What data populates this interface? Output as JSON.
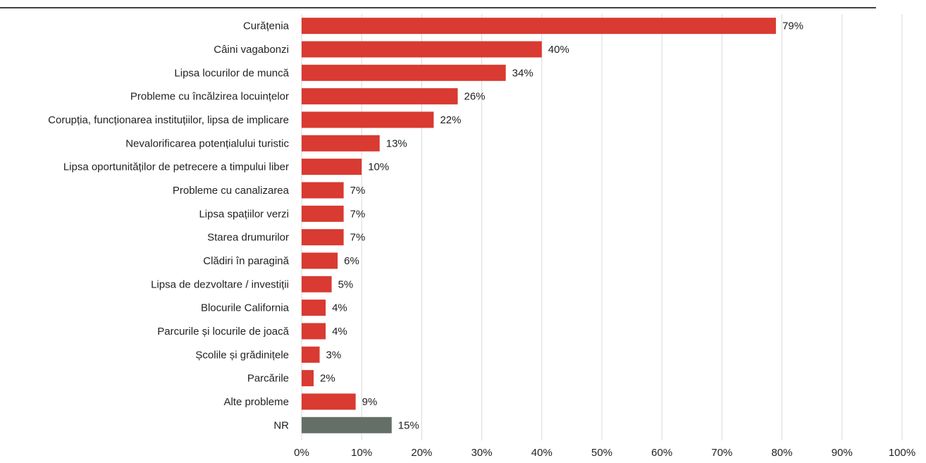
{
  "chart_data": {
    "type": "bar",
    "orientation": "horizontal",
    "categories": [
      "Curățenia",
      "Câini vagabonzi",
      "Lipsa locurilor de muncă",
      "Probleme cu încălzirea locuințelor",
      "Corupția, funcționarea instituțiilor, lipsa de implicare",
      "Nevalorificarea potențialului turistic",
      "Lipsa oportunităților de petrecere a timpului liber",
      "Probleme cu canalizarea",
      "Lipsa spațiilor verzi",
      "Starea drumurilor",
      "Clădiri în paragină",
      "Lipsa de dezvoltare / investiții",
      "Blocurile California",
      "Parcurile și locurile de joacă",
      "Școlile și grădinițele",
      "Parcările",
      "Alte probleme",
      "NR"
    ],
    "values": [
      79,
      40,
      34,
      26,
      22,
      13,
      10,
      7,
      7,
      7,
      6,
      5,
      4,
      4,
      3,
      2,
      9,
      15
    ],
    "value_labels": [
      "79%",
      "40%",
      "34%",
      "26%",
      "22%",
      "13%",
      "10%",
      "7%",
      "7%",
      "7%",
      "6%",
      "5%",
      "4%",
      "4%",
      "3%",
      "2%",
      "9%",
      "15%"
    ],
    "bar_colors": [
      "#d93a31",
      "#d93a31",
      "#d93a31",
      "#d93a31",
      "#d93a31",
      "#d93a31",
      "#d93a31",
      "#d93a31",
      "#d93a31",
      "#d93a31",
      "#d93a31",
      "#d93a31",
      "#d93a31",
      "#d93a31",
      "#d93a31",
      "#d93a31",
      "#d93a31",
      "#647067"
    ],
    "xlim": [
      0,
      100
    ],
    "x_ticks": [
      "0%",
      "10%",
      "20%",
      "30%",
      "40%",
      "50%",
      "60%",
      "70%",
      "80%",
      "90%",
      "100%"
    ],
    "grid": true,
    "legend": "none",
    "title": "",
    "xlabel": "",
    "ylabel": ""
  },
  "colors": {
    "primary_bar": "#d93a31",
    "nr_bar": "#647067",
    "gridline": "#d9d9d9",
    "top_rule": "#000000"
  }
}
